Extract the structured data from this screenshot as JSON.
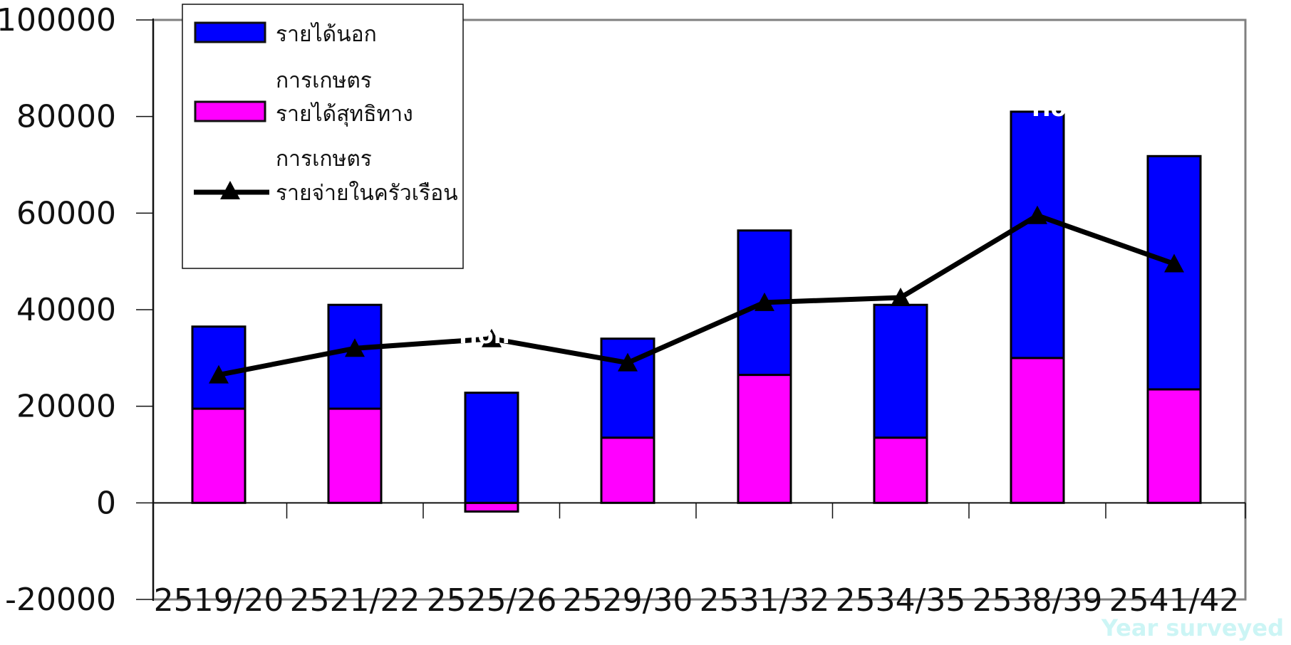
{
  "chart_data": {
    "type": "bar",
    "stacked": true,
    "title": "",
    "xlabel": "Year surveyed",
    "ylabel": "",
    "ylim": [
      -20000,
      100000
    ],
    "yticks": [
      "100000",
      "80000",
      "60000",
      "40000",
      "20000",
      "0",
      "-20000"
    ],
    "categories": [
      "2519/20",
      "2521/22",
      "2525/26",
      "2529/30",
      "2531/32",
      "2534/35",
      "2538/39",
      "2541/42"
    ],
    "series": [
      {
        "name": "รายได้สุทธิทางการเกษตร",
        "kind": "bar",
        "color": "#ff00ff",
        "values": [
          19500,
          19500,
          -1800,
          13500,
          26500,
          13500,
          30000,
          23500
        ]
      },
      {
        "name": "รายได้นอกการเกษตร",
        "kind": "bar",
        "color": "#0000ff",
        "values": [
          17000,
          21500,
          22800,
          20500,
          29900,
          27500,
          51000,
          48300
        ]
      },
      {
        "name": "รายจ่ายในครัวเรือน",
        "kind": "line",
        "marker": "triangle",
        "color": "#000000",
        "values": [
          26500,
          32000,
          34000,
          29000,
          41500,
          42500,
          59500,
          49500
        ]
      }
    ],
    "legend": {
      "position": "top-left",
      "entries": [
        {
          "lines": [
            "รายได้นอก",
            "การเกษตร"
          ],
          "swatch": "blue-box"
        },
        {
          "lines": [
            "รายได้สุทธิทาง",
            "การเกษตร"
          ],
          "swatch": "magenta-box"
        },
        {
          "lines": [
            "รายจ่ายในครัวเรือน"
          ],
          "swatch": "line-triangle"
        }
      ]
    },
    "grid": false,
    "faint_text": {
      "x_title_color": "#ccf5f5",
      "overlay_1": "Hon",
      "overlay_2": "Ho",
      "overlay_color": "#ffffff"
    }
  }
}
